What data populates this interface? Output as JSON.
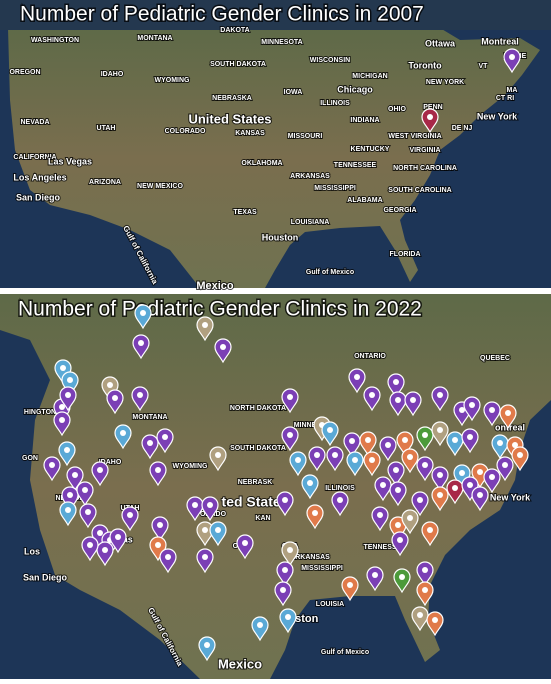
{
  "panels": [
    {
      "title": "Number of Pediatric Gender Clinics in 2007",
      "labels": [
        "WASHINGTON",
        "MONTANA",
        "DAKOTA",
        "MINNESOTA",
        "Ottawa",
        "Montreal",
        "OREGON",
        "IDAHO",
        "WYOMING",
        "SOUTH DAKOTA",
        "WISCONSIN",
        "MICHIGAN",
        "Toronto",
        "MAINE",
        "VT",
        "NEW YORK",
        "IOWA",
        "Chicago",
        "NEBRASKA",
        "MA",
        "CT RI",
        "ILLINOIS",
        "OHIO",
        "PENN",
        "NEVADA",
        "UTAH",
        "United States",
        "COLORADO",
        "KANSAS",
        "MISSOURI",
        "INDIANA",
        "WEST VIRGINIA",
        "New York",
        "DE NJ",
        "KENTUCKY",
        "VIRGINIA",
        "CALIFORNIA",
        "Las Vegas",
        "OKLAHOMA",
        "TENNESSEE",
        "NORTH CAROLINA",
        "Los Angeles",
        "ARIZONA",
        "ARKANSAS",
        "NEW MEXICO",
        "MISSISSIPPI",
        "SOUTH CAROLINA",
        "San Diego",
        "ALABAMA",
        "GEORGIA",
        "TEXAS",
        "LOUISIANA",
        "Houston",
        "FLORIDA",
        "Gulf of California",
        "Gulf of Mexico",
        "Mexico"
      ]
    },
    {
      "title": "Number of Pediatric Gender Clinics in 2022",
      "labels": [
        "ONTARIO",
        "QUEBEC",
        "HINGTON",
        "MONTANA",
        "NORTH DAKOTA",
        "MINNE",
        "SOUTH DAKOTA",
        "GON",
        "IDAHO",
        "WYOMING",
        "NEBRASK",
        "NEVADA",
        "UTAH",
        "ted States",
        "ORADO",
        "KAN",
        "ontreal",
        "New York",
        "ILLINOIS",
        "Los",
        "Las",
        "San Diego",
        "OKL",
        "OMA",
        "ARKANSAS",
        "TENNESS",
        "MISSISSIPPI",
        "LOUISIA",
        "ouston",
        "Gulf of Mexico",
        "Gulf of California",
        "Mexico"
      ]
    }
  ]
}
